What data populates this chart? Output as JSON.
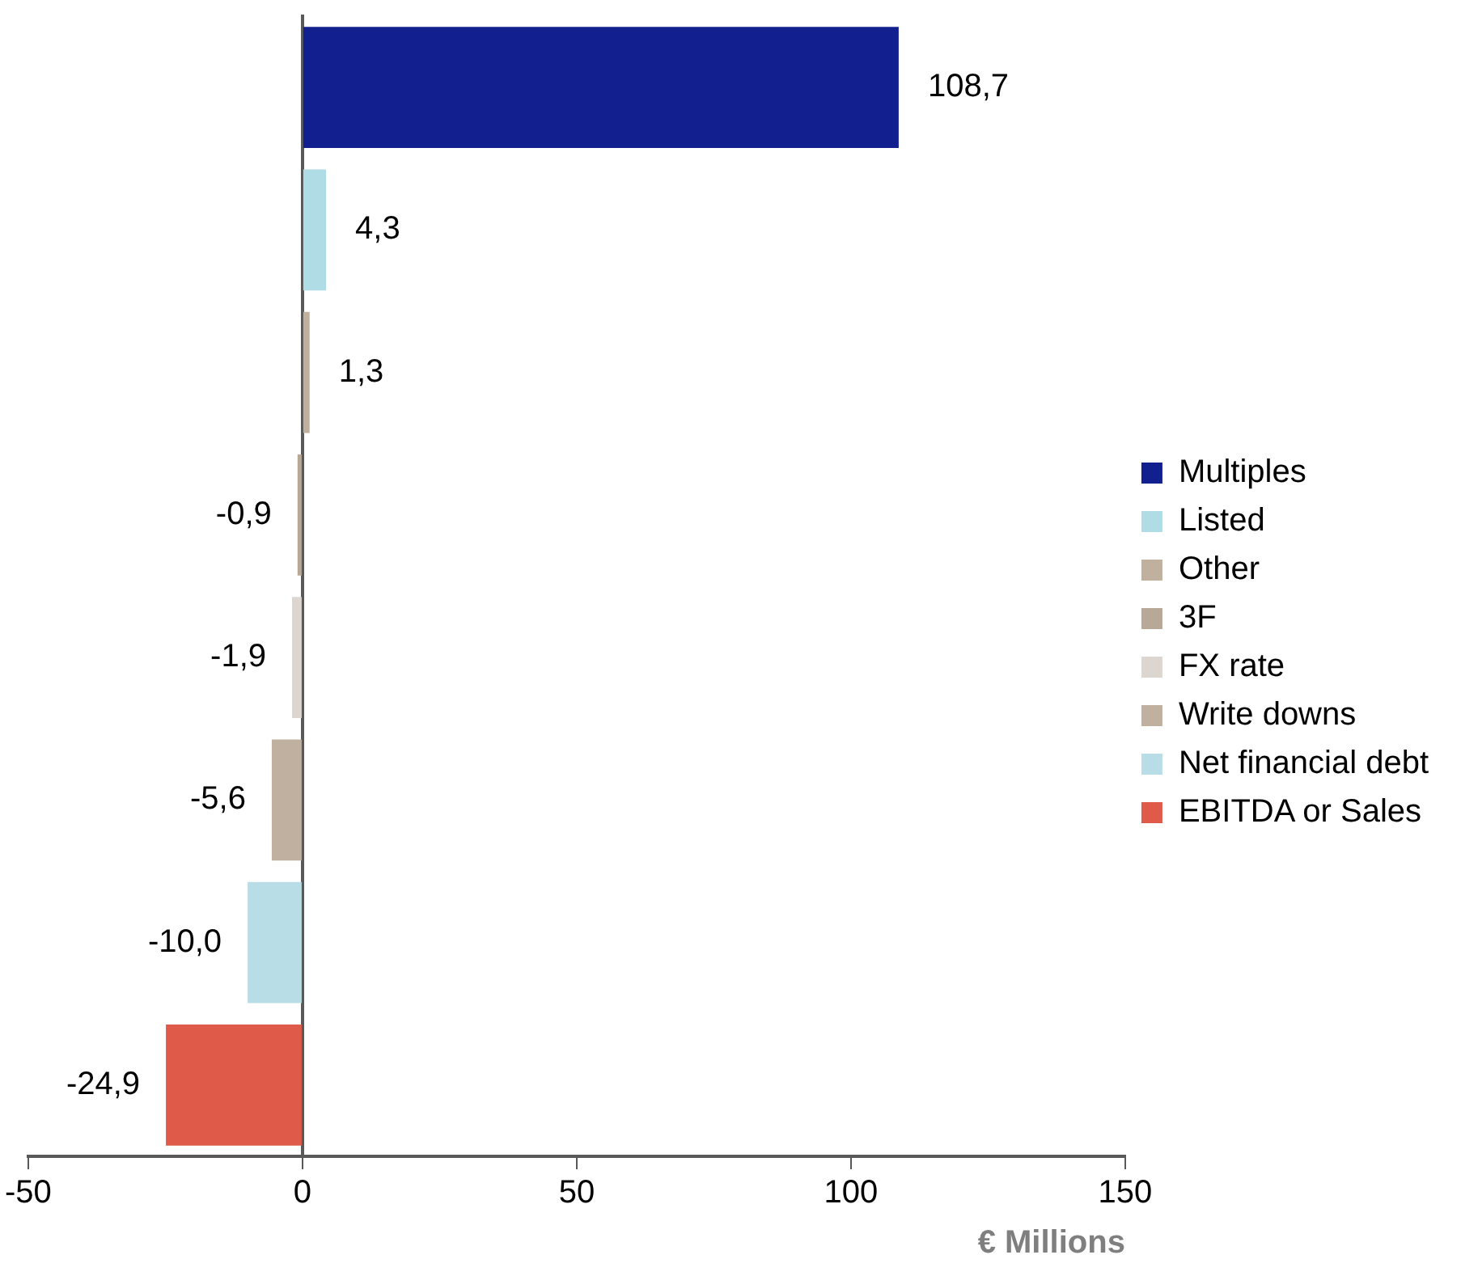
{
  "chart_data": {
    "type": "bar",
    "orientation": "horizontal",
    "xlabel": "€ Millions",
    "categories": [
      null,
      null,
      null,
      null,
      null,
      null,
      null,
      null
    ],
    "series": [
      {
        "name": "Multiples",
        "color": "#12208f",
        "values": [
          108.7,
          null,
          null,
          null,
          null,
          null,
          null,
          null
        ],
        "value_labels": [
          "108,7",
          null,
          null,
          null,
          null,
          null,
          null,
          null
        ]
      },
      {
        "name": "Listed",
        "color": "#b0dce6",
        "values": [
          null,
          4.3,
          null,
          null,
          null,
          null,
          null,
          null
        ],
        "value_labels": [
          null,
          "4,3",
          null,
          null,
          null,
          null,
          null,
          null
        ]
      },
      {
        "name": "Other",
        "color": "#c0b09e",
        "values": [
          null,
          null,
          1.3,
          null,
          null,
          null,
          null,
          null
        ],
        "value_labels": [
          null,
          null,
          "1,3",
          null,
          null,
          null,
          null,
          null
        ]
      },
      {
        "name": "3F",
        "color": "#b8a898",
        "values": [
          null,
          null,
          null,
          -0.9,
          null,
          null,
          null,
          null
        ],
        "value_labels": [
          null,
          null,
          null,
          "-0,9",
          null,
          null,
          null,
          null
        ]
      },
      {
        "name": "FX rate",
        "color": "#ddd6d0",
        "values": [
          null,
          null,
          null,
          null,
          -1.9,
          null,
          null,
          null
        ],
        "value_labels": [
          null,
          null,
          null,
          null,
          "-1,9",
          null,
          null,
          null
        ]
      },
      {
        "name": "Write downs",
        "color": "#c0b0a0",
        "values": [
          null,
          null,
          null,
          null,
          null,
          -5.6,
          null,
          null
        ],
        "value_labels": [
          null,
          null,
          null,
          null,
          null,
          "-5,6",
          null,
          null
        ]
      },
      {
        "name": "Net financial debt",
        "color": "#b8dde6",
        "values": [
          null,
          null,
          null,
          null,
          null,
          null,
          -10.0,
          null
        ],
        "value_labels": [
          null,
          null,
          null,
          null,
          null,
          null,
          "-10,0",
          null
        ]
      },
      {
        "name": "EBITDA or Sales",
        "color": "#e05a4a",
        "values": [
          null,
          null,
          null,
          null,
          null,
          null,
          null,
          -24.9
        ],
        "value_labels": [
          null,
          null,
          null,
          null,
          null,
          null,
          null,
          "-24,9"
        ]
      }
    ],
    "xlim": [
      -50,
      150
    ],
    "xticks": [
      -50,
      0,
      50,
      100,
      150
    ],
    "legend": "right"
  }
}
